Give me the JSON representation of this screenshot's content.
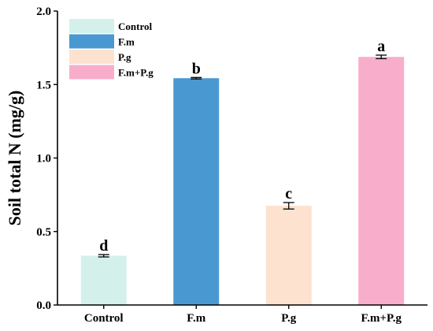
{
  "chart_data": {
    "type": "bar",
    "categories": [
      "Control",
      "F.m",
      "P.g",
      "F.m+P.g"
    ],
    "values": [
      0.335,
      1.543,
      0.675,
      1.688
    ],
    "errors": [
      0.008,
      0.005,
      0.022,
      0.012
    ],
    "significance": [
      "d",
      "b",
      "c",
      "a"
    ],
    "colors": [
      "#d3f1ea",
      "#4a98d1",
      "#fce2cf",
      "#f8aecb"
    ],
    "ylabel": "Soil total N (mg/g)",
    "xlabel": "",
    "ylim": [
      0,
      2.0
    ],
    "yticks": [
      "0.0",
      "0.5",
      "1.0",
      "1.5",
      "2.0"
    ],
    "grid": false,
    "legend": {
      "placement": "top-left",
      "entries": [
        "Control",
        "F.m",
        "P.g",
        "F.m+P.g"
      ]
    }
  }
}
